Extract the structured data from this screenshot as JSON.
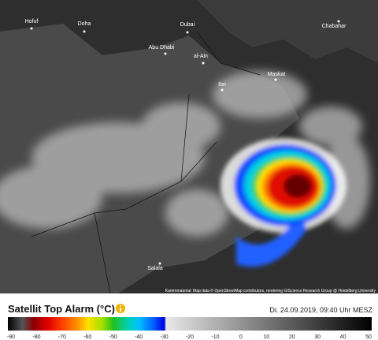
{
  "map": {
    "cities": [
      "Hofuf",
      "Doha",
      "Dubai",
      "Abu Dhabi",
      "al-Ain",
      "Ibri",
      "Maskat",
      "Chabahar",
      "Salala"
    ],
    "attribution": "Kartenmaterial: Map data © OpenStreetMap contributors, rendering GIScience Research Group @ Heidelberg University"
  },
  "legend": {
    "title": "Satellit Top Alarm (°C)",
    "timestamp": "Di. 24.09.2019, 09:40 Uhr MESZ",
    "ticks": [
      -90,
      -80,
      -70,
      -60,
      -50,
      -40,
      -30,
      -20,
      -10,
      0,
      10,
      20,
      30,
      40,
      50
    ]
  }
}
